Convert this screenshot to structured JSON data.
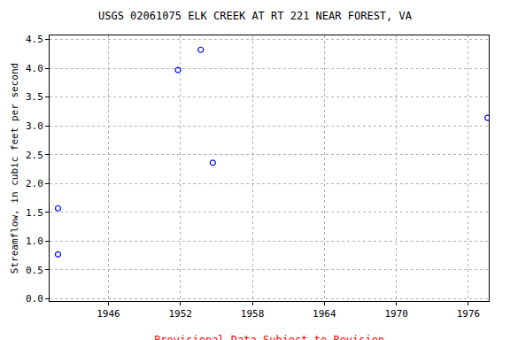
{
  "chart_data": {
    "type": "scatter",
    "title": "USGS 02061075 ELK CREEK AT RT 221 NEAR FOREST, VA",
    "y_label": "Streamflow, in cubic feet per second",
    "annotations": [
      "---- Provisional Data Subject to Revision ----"
    ],
    "x": [
      1941.8,
      1941.8,
      1951.8,
      1953.7,
      1954.7,
      1977.6
    ],
    "values": [
      1.57,
      0.77,
      3.97,
      4.32,
      2.36,
      3.14
    ],
    "color": "#0000ff",
    "marker": "circle-open",
    "xlim": [
      1941.1,
      1977.7
    ],
    "xticks": [
      1946,
      1952,
      1958,
      1964,
      1970,
      1976
    ],
    "ylim": [
      -0.04,
      4.57
    ],
    "yticks": [
      {
        "value": 0,
        "label": "0.0"
      },
      0.5,
      {
        "value": 1,
        "label": "1.0"
      },
      1.5,
      {
        "value": 2,
        "label": "2.0"
      },
      2.5,
      {
        "value": 3,
        "label": "3.0"
      },
      3.5,
      {
        "value": 4,
        "label": "4.0"
      },
      4.5
    ],
    "grid": true
  }
}
